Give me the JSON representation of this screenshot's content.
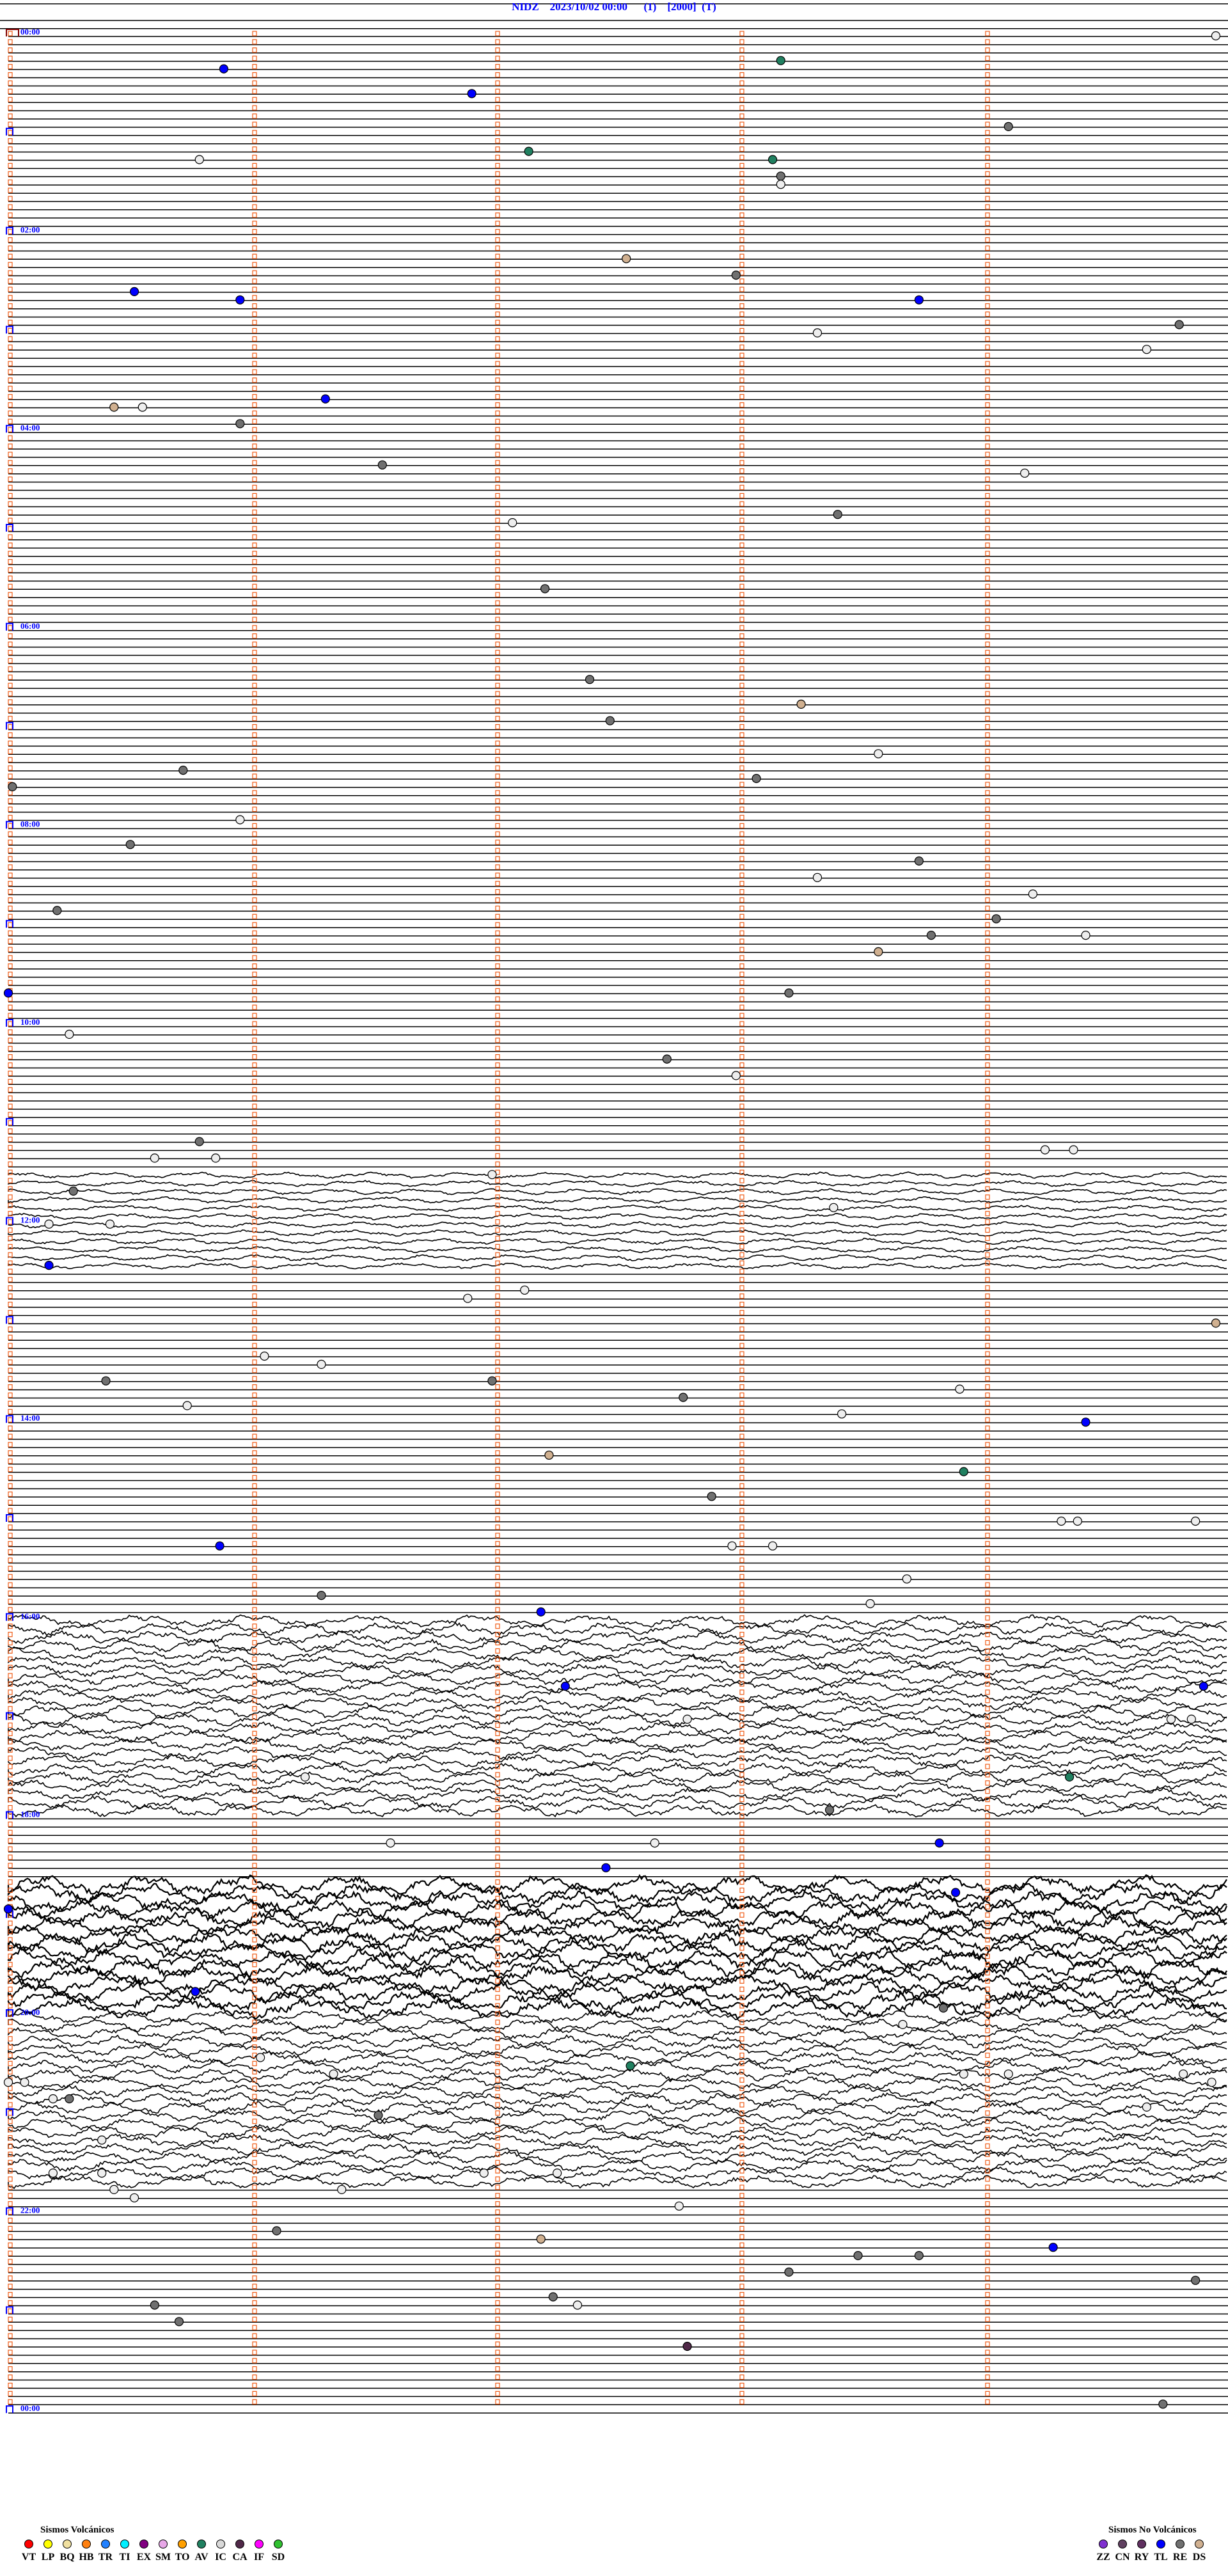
{
  "header": {
    "title": "NIDZ    2023/10/02 00:00      (1)    [2000]  (T)",
    "station": "NIDZ",
    "date_time": "2023/10/02 00:00",
    "channel": "(1)",
    "scale": "[2000]",
    "mode": "(T)"
  },
  "chart_data": {
    "type": "helicorder",
    "minutes_per_line": 5,
    "start": "00:00",
    "end": "24:00",
    "hour_labels": [
      "00:00",
      "02:00",
      "04:00",
      "06:00",
      "08:00",
      "10:00",
      "12:00",
      "14:00",
      "16:00",
      "18:00",
      "20:00",
      "22:00",
      "00:00"
    ],
    "noisy_periods": [
      {
        "from": "11:30",
        "to": "12:30",
        "level": 1
      },
      {
        "from": "16:00",
        "to": "18:00",
        "level": 2
      },
      {
        "from": "18:40",
        "to": "20:00",
        "level": 3
      },
      {
        "from": "20:00",
        "to": "21:45",
        "level": 2
      }
    ],
    "events": [
      [
        "00:00",
        297,
        "IC"
      ],
      [
        "00:20",
        53,
        "TL"
      ],
      [
        "00:15",
        190,
        "AV"
      ],
      [
        "00:35",
        114,
        "TL"
      ],
      [
        "00:55",
        246,
        "RE"
      ],
      [
        "01:10",
        128,
        "AV"
      ],
      [
        "01:15",
        47,
        "IC"
      ],
      [
        "01:15",
        188,
        "AV"
      ],
      [
        "01:25",
        190,
        "RE"
      ],
      [
        "01:30",
        190,
        "IC"
      ],
      [
        "02:15",
        152,
        "DS"
      ],
      [
        "02:25",
        179,
        "RE"
      ],
      [
        "02:35",
        31,
        "TL"
      ],
      [
        "02:40",
        57,
        "TL"
      ],
      [
        "02:40",
        224,
        "TL"
      ],
      [
        "02:55",
        288,
        "RE"
      ],
      [
        "03:00",
        199,
        "IC"
      ],
      [
        "03:10",
        280,
        "IC"
      ],
      [
        "03:40",
        78,
        "TL"
      ],
      [
        "03:45",
        26,
        "DS"
      ],
      [
        "03:45",
        33,
        "IC"
      ],
      [
        "03:55",
        57,
        "RE"
      ],
      [
        "04:20",
        92,
        "RE"
      ],
      [
        "04:25",
        250,
        "IC"
      ],
      [
        "04:50",
        204,
        "RE"
      ],
      [
        "04:55",
        124,
        "IC"
      ],
      [
        "05:35",
        132,
        "RE"
      ],
      [
        "06:30",
        143,
        "RE"
      ],
      [
        "06:45",
        195,
        "DS"
      ],
      [
        "06:55",
        148,
        "RE"
      ],
      [
        "07:15",
        214,
        "IC"
      ],
      [
        "07:25",
        43,
        "RE"
      ],
      [
        "07:30",
        184,
        "RE"
      ],
      [
        "07:35",
        1,
        "RE"
      ],
      [
        "07:55",
        57,
        "IC"
      ],
      [
        "08:10",
        30,
        "RE"
      ],
      [
        "08:20",
        224,
        "RE"
      ],
      [
        "08:30",
        199,
        "IC"
      ],
      [
        "08:40",
        252,
        "IC"
      ],
      [
        "08:50",
        12,
        "RE"
      ],
      [
        "08:55",
        243,
        "RE"
      ],
      [
        "09:05",
        265,
        "IC"
      ],
      [
        "09:05",
        227,
        "RE"
      ],
      [
        "09:15",
        214,
        "DS"
      ],
      [
        "09:40",
        0,
        "TL"
      ],
      [
        "09:40",
        192,
        "RE"
      ],
      [
        "10:05",
        15,
        "IC"
      ],
      [
        "10:20",
        162,
        "RE"
      ],
      [
        "10:30",
        179,
        "IC"
      ],
      [
        "11:10",
        47,
        "RE"
      ],
      [
        "11:15",
        255,
        "IC"
      ],
      [
        "11:15",
        262,
        "IC"
      ],
      [
        "11:20",
        36,
        "IC"
      ],
      [
        "11:20",
        51,
        "IC"
      ],
      [
        "11:30",
        119,
        "IC"
      ],
      [
        "11:40",
        16,
        "RE"
      ],
      [
        "11:50",
        203,
        "IC"
      ],
      [
        "12:00",
        10,
        "IC"
      ],
      [
        "12:00",
        25,
        "IC"
      ],
      [
        "12:25",
        10,
        "TL"
      ],
      [
        "12:40",
        127,
        "IC"
      ],
      [
        "12:45",
        113,
        "IC"
      ],
      [
        "13:00",
        297,
        "DS"
      ],
      [
        "13:20",
        63,
        "IC"
      ],
      [
        "13:25",
        77,
        "IC"
      ],
      [
        "13:35",
        24,
        "RE"
      ],
      [
        "13:35",
        119,
        "RE"
      ],
      [
        "13:45",
        166,
        "RE"
      ],
      [
        "13:50",
        44,
        "IC"
      ],
      [
        "13:40",
        234,
        "IC"
      ],
      [
        "13:55",
        205,
        "IC"
      ],
      [
        "14:00",
        265,
        "TL"
      ],
      [
        "14:20",
        133,
        "DS"
      ],
      [
        "14:30",
        235,
        "AV"
      ],
      [
        "14:45",
        173,
        "RE"
      ],
      [
        "15:00",
        259,
        "IC"
      ],
      [
        "15:00",
        263,
        "IC"
      ],
      [
        "15:00",
        292,
        "IC"
      ],
      [
        "15:15",
        52,
        "TL"
      ],
      [
        "15:15",
        178,
        "IC"
      ],
      [
        "15:15",
        188,
        "IC"
      ],
      [
        "15:35",
        221,
        "IC"
      ],
      [
        "15:45",
        77,
        "RE"
      ],
      [
        "15:50",
        212,
        "IC"
      ],
      [
        "15:55",
        131,
        "TL"
      ],
      [
        "16:40",
        294,
        "TL"
      ],
      [
        "16:40",
        137,
        "TL"
      ],
      [
        "17:00",
        167,
        "IC"
      ],
      [
        "17:00",
        286,
        "IC"
      ],
      [
        "17:00",
        291,
        "IC"
      ],
      [
        "17:35",
        73,
        "IC"
      ],
      [
        "17:35",
        261,
        "AV"
      ],
      [
        "17:55",
        202,
        "RE"
      ],
      [
        "18:15",
        94,
        "IC"
      ],
      [
        "18:15",
        159,
        "IC"
      ],
      [
        "18:15",
        229,
        "TL"
      ],
      [
        "18:30",
        147,
        "TL"
      ],
      [
        "18:45",
        233,
        "TL"
      ],
      [
        "18:55",
        0,
        "TL"
      ],
      [
        "19:45",
        46,
        "TL"
      ],
      [
        "19:55",
        230,
        "RE"
      ],
      [
        "20:05",
        220,
        "IC"
      ],
      [
        "20:25",
        62,
        "IC"
      ],
      [
        "20:30",
        153,
        "AV"
      ],
      [
        "20:35",
        80,
        "IC"
      ],
      [
        "20:35",
        235,
        "IC"
      ],
      [
        "20:35",
        246,
        "IC"
      ],
      [
        "20:35",
        289,
        "IC"
      ],
      [
        "20:40",
        296,
        "IC"
      ],
      [
        "20:40",
        4,
        "IC"
      ],
      [
        "20:40",
        0,
        "IC"
      ],
      [
        "21:00",
        91,
        "RE"
      ],
      [
        "20:50",
        15,
        "RE"
      ],
      [
        "20:50",
        11,
        "IC"
      ],
      [
        "20:55",
        280,
        "IC"
      ],
      [
        "21:15",
        23,
        "IC"
      ],
      [
        "21:35",
        11,
        "IC"
      ],
      [
        "21:35",
        23,
        "IC"
      ],
      [
        "21:35",
        117,
        "IC"
      ],
      [
        "21:35",
        135,
        "IC"
      ],
      [
        "21:45",
        26,
        "IC"
      ],
      [
        "21:50",
        31,
        "IC"
      ],
      [
        "21:45",
        82,
        "IC"
      ],
      [
        "21:55",
        165,
        "IC"
      ],
      [
        "22:10",
        66,
        "RE"
      ],
      [
        "22:15",
        131,
        "DS"
      ],
      [
        "22:20",
        257,
        "TL"
      ],
      [
        "22:25",
        209,
        "RE"
      ],
      [
        "22:25",
        224,
        "RE"
      ],
      [
        "22:35",
        192,
        "RE"
      ],
      [
        "22:40",
        292,
        "RE"
      ],
      [
        "22:50",
        134,
        "RE"
      ],
      [
        "22:55",
        36,
        "RE"
      ],
      [
        "22:55",
        140,
        "IC"
      ],
      [
        "23:05",
        42,
        "RE"
      ],
      [
        "23:20",
        167,
        "CA"
      ],
      [
        "23:55",
        284,
        "RE"
      ]
    ]
  },
  "legend": {
    "volcanic_title": "Sismos Volcánicos",
    "volcanic": [
      {
        "code": "VT",
        "color": "#ff0000"
      },
      {
        "code": "LP",
        "color": "#ffff00"
      },
      {
        "code": "BQ",
        "color": "#f0e0a0"
      },
      {
        "code": "HB",
        "color": "#ff8010"
      },
      {
        "code": "TR",
        "color": "#2080ff"
      },
      {
        "code": "TI",
        "color": "#00f0ff"
      },
      {
        "code": "EX",
        "color": "#800080"
      },
      {
        "code": "SM",
        "color": "#e8a8e8"
      },
      {
        "code": "TO",
        "color": "#ffa000"
      },
      {
        "code": "AV",
        "color": "#208060"
      },
      {
        "code": "IC",
        "color": "#d8d8d8"
      },
      {
        "code": "CA",
        "color": "#502848"
      },
      {
        "code": "IF",
        "color": "#ff00ff"
      },
      {
        "code": "SD",
        "color": "#30c030"
      }
    ],
    "non_volcanic_title": "Sismos No Volcánicos",
    "non_volcanic": [
      {
        "code": "ZZ",
        "color": "#8030d0"
      },
      {
        "code": "CN",
        "color": "#604060"
      },
      {
        "code": "RY",
        "color": "#603060"
      },
      {
        "code": "TL",
        "color": "#0000ff"
      },
      {
        "code": "RE",
        "color": "#707070"
      },
      {
        "code": "DS",
        "color": "#d0b090"
      }
    ]
  },
  "colors": {
    "title": "#0000ff",
    "minute_marker": "#f05a14",
    "trace": "#000000",
    "hour_marker": "#0000ff",
    "start_marker": "#800000"
  }
}
